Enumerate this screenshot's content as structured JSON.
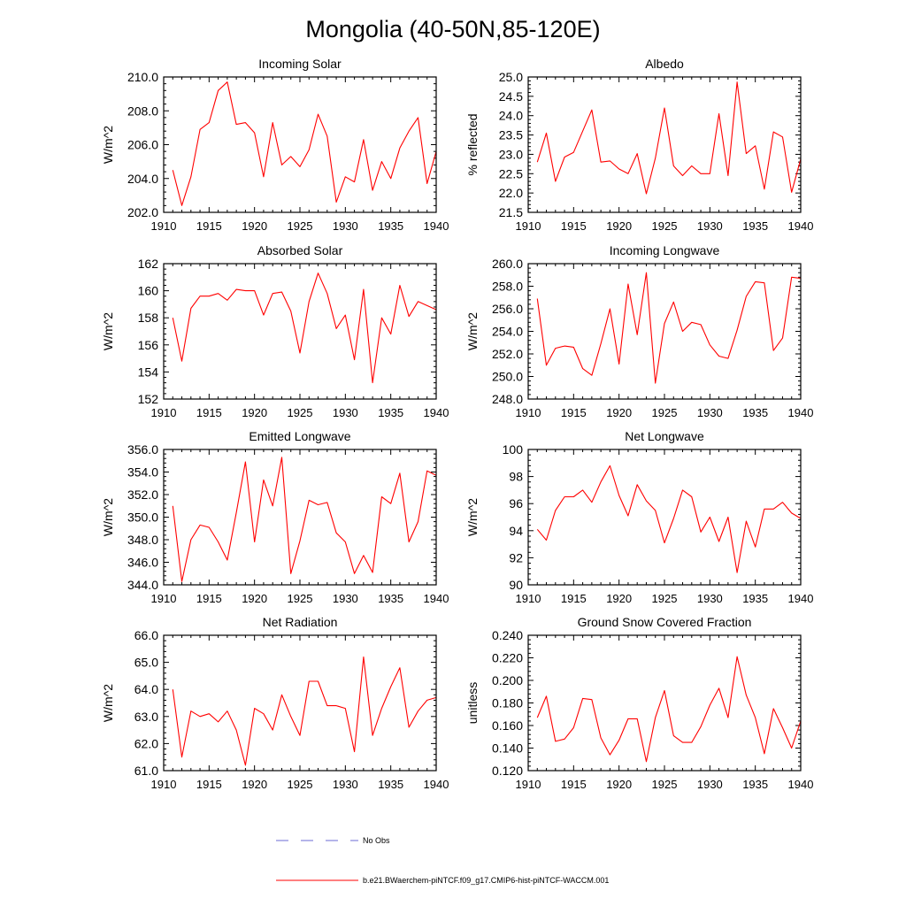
{
  "figure": {
    "title": "Mongolia (40-50N,85-120E)",
    "line_color": "#ff0000",
    "legend_line_color": "#6b6bd6",
    "legend": [
      {
        "label": "No Obs",
        "style": "dashed",
        "color": "#6b6bd6"
      },
      {
        "label": "b.e21.BWaerchem-piNTCF.f09_g17.CMIP6-hist-piNTCF-WACCM.001",
        "style": "solid",
        "color": "#ff0000"
      }
    ]
  },
  "chart_data": [
    {
      "type": "line",
      "title": "Incoming Solar",
      "ylabel": "W/m^2",
      "xlim": [
        1910,
        1940
      ],
      "ylim": [
        202,
        210
      ],
      "yticks": [
        "202.0",
        "204.0",
        "206.0",
        "208.0",
        "210.0"
      ],
      "ytick_values": [
        202,
        204,
        206,
        208,
        210
      ],
      "xticks": [
        "1910",
        "1915",
        "1920",
        "1925",
        "1930",
        "1935",
        "1940"
      ],
      "x": [
        1911,
        1912,
        1913,
        1914,
        1915,
        1916,
        1917,
        1918,
        1919,
        1920,
        1921,
        1922,
        1923,
        1924,
        1925,
        1926,
        1927,
        1928,
        1929,
        1930,
        1931,
        1932,
        1933,
        1934,
        1935,
        1936,
        1937,
        1938,
        1939,
        1940
      ],
      "series": [
        {
          "values": [
            204.5,
            202.4,
            204.1,
            206.9,
            207.3,
            209.2,
            209.7,
            207.2,
            207.3,
            206.7,
            204.1,
            207.3,
            204.8,
            205.3,
            204.7,
            205.7,
            207.8,
            206.5,
            202.6,
            204.1,
            203.8,
            206.3,
            203.3,
            205.0,
            204.0,
            205.8,
            206.8,
            207.6,
            203.7,
            205.6
          ]
        }
      ]
    },
    {
      "type": "line",
      "title": "Albedo",
      "ylabel": "% reflected",
      "xlim": [
        1910,
        1940
      ],
      "ylim": [
        21.5,
        25.0
      ],
      "yticks": [
        "21.5",
        "22.0",
        "22.5",
        "23.0",
        "23.5",
        "24.0",
        "24.5",
        "25.0"
      ],
      "ytick_values": [
        21.5,
        22.0,
        22.5,
        23.0,
        23.5,
        24.0,
        24.5,
        25.0
      ],
      "xticks": [
        "1910",
        "1915",
        "1920",
        "1925",
        "1930",
        "1935",
        "1940"
      ],
      "x": [
        1911,
        1912,
        1913,
        1914,
        1915,
        1916,
        1917,
        1918,
        1919,
        1920,
        1921,
        1922,
        1923,
        1924,
        1925,
        1926,
        1927,
        1928,
        1929,
        1930,
        1931,
        1932,
        1933,
        1934,
        1935,
        1936,
        1937,
        1938,
        1939,
        1940
      ],
      "series": [
        {
          "values": [
            22.8,
            23.55,
            22.3,
            22.93,
            23.05,
            23.6,
            24.15,
            22.8,
            22.83,
            22.62,
            22.5,
            23.02,
            21.98,
            22.9,
            24.2,
            22.7,
            22.45,
            22.7,
            22.5,
            22.5,
            24.05,
            22.45,
            24.87,
            23.02,
            23.22,
            22.1,
            23.58,
            23.45,
            22.02,
            22.88
          ]
        }
      ]
    },
    {
      "type": "line",
      "title": "Absorbed Solar",
      "ylabel": "W/m^2",
      "xlim": [
        1910,
        1940
      ],
      "ylim": [
        152,
        162
      ],
      "yticks": [
        "152",
        "154",
        "156",
        "158",
        "160",
        "162"
      ],
      "ytick_values": [
        152,
        154,
        156,
        158,
        160,
        162
      ],
      "xticks": [
        "1910",
        "1915",
        "1920",
        "1925",
        "1930",
        "1935",
        "1940"
      ],
      "x": [
        1911,
        1912,
        1913,
        1914,
        1915,
        1916,
        1917,
        1918,
        1919,
        1920,
        1921,
        1922,
        1923,
        1924,
        1925,
        1926,
        1927,
        1928,
        1929,
        1930,
        1931,
        1932,
        1933,
        1934,
        1935,
        1936,
        1937,
        1938,
        1939,
        1940
      ],
      "series": [
        {
          "values": [
            158.0,
            154.8,
            158.7,
            159.6,
            159.6,
            159.8,
            159.3,
            160.1,
            160.0,
            160.0,
            158.2,
            159.8,
            159.9,
            158.5,
            155.4,
            159.2,
            161.3,
            159.8,
            157.2,
            158.2,
            154.9,
            160.1,
            153.2,
            158.0,
            156.8,
            160.4,
            158.1,
            159.2,
            158.9,
            158.6
          ]
        }
      ]
    },
    {
      "type": "line",
      "title": "Incoming Longwave",
      "ylabel": "W/m^2",
      "xlim": [
        1910,
        1940
      ],
      "ylim": [
        248,
        260
      ],
      "yticks": [
        "248.0",
        "250.0",
        "252.0",
        "254.0",
        "256.0",
        "258.0",
        "260.0"
      ],
      "ytick_values": [
        248,
        250,
        252,
        254,
        256,
        258,
        260
      ],
      "xticks": [
        "1910",
        "1915",
        "1920",
        "1925",
        "1930",
        "1935",
        "1940"
      ],
      "x": [
        1911,
        1912,
        1913,
        1914,
        1915,
        1916,
        1917,
        1918,
        1919,
        1920,
        1921,
        1922,
        1923,
        1924,
        1925,
        1926,
        1927,
        1928,
        1929,
        1930,
        1931,
        1932,
        1933,
        1934,
        1935,
        1936,
        1937,
        1938,
        1939,
        1940
      ],
      "series": [
        {
          "values": [
            256.9,
            251.0,
            252.5,
            252.7,
            252.6,
            250.7,
            250.1,
            252.9,
            256.0,
            251.1,
            258.2,
            253.7,
            259.2,
            249.4,
            254.7,
            256.6,
            254.0,
            254.8,
            254.6,
            252.8,
            251.8,
            251.6,
            254.1,
            257.1,
            258.4,
            258.3,
            252.3,
            253.4,
            258.8,
            258.7
          ]
        }
      ]
    },
    {
      "type": "line",
      "title": "Emitted Longwave",
      "ylabel": "W/m^2",
      "xlim": [
        1910,
        1940
      ],
      "ylim": [
        344,
        356
      ],
      "yticks": [
        "344.0",
        "346.0",
        "348.0",
        "350.0",
        "352.0",
        "354.0",
        "356.0"
      ],
      "ytick_values": [
        344,
        346,
        348,
        350,
        352,
        354,
        356
      ],
      "xticks": [
        "1910",
        "1915",
        "1920",
        "1925",
        "1930",
        "1935",
        "1940"
      ],
      "x": [
        1911,
        1912,
        1913,
        1914,
        1915,
        1916,
        1917,
        1918,
        1919,
        1920,
        1921,
        1922,
        1923,
        1924,
        1925,
        1926,
        1927,
        1928,
        1929,
        1930,
        1931,
        1932,
        1933,
        1934,
        1935,
        1936,
        1937,
        1938,
        1939,
        1940
      ],
      "series": [
        {
          "values": [
            351.0,
            344.3,
            348.0,
            349.3,
            349.1,
            347.8,
            346.2,
            350.4,
            354.9,
            347.8,
            353.3,
            351.0,
            355.3,
            345.0,
            347.9,
            351.5,
            351.1,
            351.3,
            348.6,
            347.8,
            345.0,
            346.6,
            345.1,
            351.8,
            351.2,
            353.9,
            347.8,
            349.6,
            354.1,
            353.7
          ]
        }
      ]
    },
    {
      "type": "line",
      "title": "Net Longwave",
      "ylabel": "W/m^2",
      "xlim": [
        1910,
        1940
      ],
      "ylim": [
        90,
        100
      ],
      "yticks": [
        "90",
        "92",
        "94",
        "96",
        "98",
        "100"
      ],
      "ytick_values": [
        90,
        92,
        94,
        96,
        98,
        100
      ],
      "xticks": [
        "1910",
        "1915",
        "1920",
        "1925",
        "1930",
        "1935",
        "1940"
      ],
      "x": [
        1911,
        1912,
        1913,
        1914,
        1915,
        1916,
        1917,
        1918,
        1919,
        1920,
        1921,
        1922,
        1923,
        1924,
        1925,
        1926,
        1927,
        1928,
        1929,
        1930,
        1931,
        1932,
        1933,
        1934,
        1935,
        1936,
        1937,
        1938,
        1939,
        1940
      ],
      "series": [
        {
          "values": [
            94.1,
            93.3,
            95.5,
            96.5,
            96.5,
            97.0,
            96.1,
            97.6,
            98.8,
            96.6,
            95.1,
            97.4,
            96.2,
            95.5,
            93.1,
            94.9,
            97.0,
            96.5,
            93.9,
            95.0,
            93.2,
            95.0,
            90.9,
            94.7,
            92.8,
            95.6,
            95.6,
            96.1,
            95.3,
            94.9
          ]
        }
      ]
    },
    {
      "type": "line",
      "title": "Net Radiation",
      "ylabel": "W/m^2",
      "xlim": [
        1910,
        1940
      ],
      "ylim": [
        61,
        66
      ],
      "yticks": [
        "61.0",
        "62.0",
        "63.0",
        "64.0",
        "65.0",
        "66.0"
      ],
      "ytick_values": [
        61,
        62,
        63,
        64,
        65,
        66
      ],
      "xticks": [
        "1910",
        "1915",
        "1920",
        "1925",
        "1930",
        "1935",
        "1940"
      ],
      "x": [
        1911,
        1912,
        1913,
        1914,
        1915,
        1916,
        1917,
        1918,
        1919,
        1920,
        1921,
        1922,
        1923,
        1924,
        1925,
        1926,
        1927,
        1928,
        1929,
        1930,
        1931,
        1932,
        1933,
        1934,
        1935,
        1936,
        1937,
        1938,
        1939,
        1940
      ],
      "series": [
        {
          "values": [
            64.0,
            61.5,
            63.2,
            63.0,
            63.1,
            62.8,
            63.2,
            62.5,
            61.2,
            63.3,
            63.1,
            62.5,
            63.8,
            63.0,
            62.3,
            64.3,
            64.3,
            63.4,
            63.4,
            63.3,
            61.7,
            65.2,
            62.3,
            63.3,
            64.1,
            64.8,
            62.6,
            63.2,
            63.6,
            63.7
          ]
        }
      ]
    },
    {
      "type": "line",
      "title": "Ground Snow Covered Fraction",
      "ylabel": "unitless",
      "xlim": [
        1910,
        1940
      ],
      "ylim": [
        0.12,
        0.24
      ],
      "yticks": [
        "0.120",
        "0.140",
        "0.160",
        "0.180",
        "0.200",
        "0.220",
        "0.240"
      ],
      "ytick_values": [
        0.12,
        0.14,
        0.16,
        0.18,
        0.2,
        0.22,
        0.24
      ],
      "xticks": [
        "1910",
        "1915",
        "1920",
        "1925",
        "1930",
        "1935",
        "1940"
      ],
      "x": [
        1911,
        1912,
        1913,
        1914,
        1915,
        1916,
        1917,
        1918,
        1919,
        1920,
        1921,
        1922,
        1923,
        1924,
        1925,
        1926,
        1927,
        1928,
        1929,
        1930,
        1931,
        1932,
        1933,
        1934,
        1935,
        1936,
        1937,
        1938,
        1939,
        1940
      ],
      "series": [
        {
          "values": [
            0.167,
            0.186,
            0.146,
            0.148,
            0.158,
            0.184,
            0.183,
            0.149,
            0.134,
            0.147,
            0.166,
            0.166,
            0.128,
            0.167,
            0.191,
            0.151,
            0.145,
            0.145,
            0.159,
            0.178,
            0.193,
            0.167,
            0.221,
            0.187,
            0.167,
            0.135,
            0.175,
            0.158,
            0.14,
            0.164
          ]
        }
      ]
    }
  ]
}
